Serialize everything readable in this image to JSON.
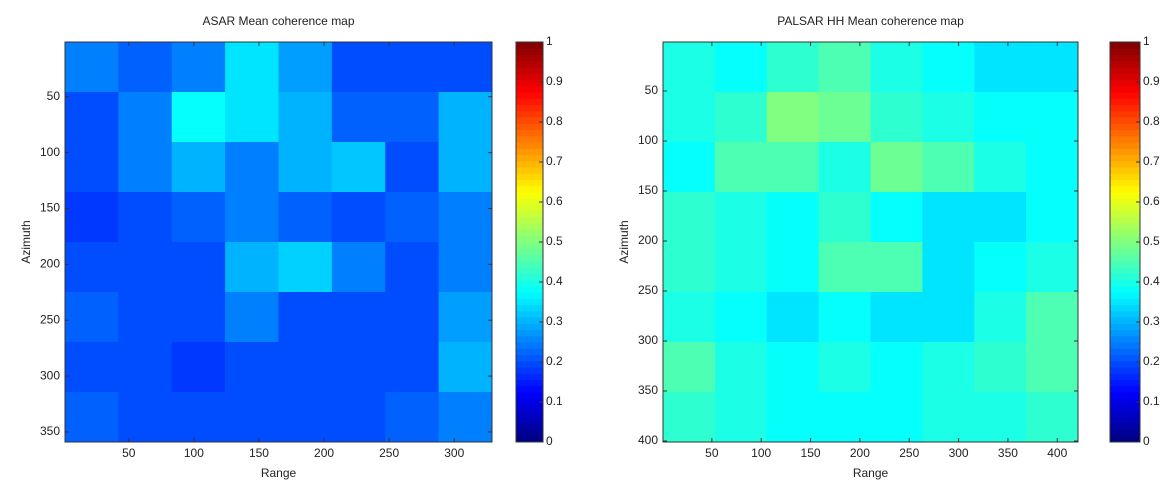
{
  "chart_data": [
    {
      "type": "heatmap",
      "title": "ASAR Mean coherence map",
      "xlabel": "Range",
      "ylabel": "Azimuth",
      "xlim": [
        1,
        329
      ],
      "ylim": [
        1,
        359
      ],
      "xticks": [
        50,
        100,
        150,
        200,
        250,
        300
      ],
      "yticks": [
        50,
        100,
        150,
        200,
        250,
        300,
        350
      ],
      "clim": [
        0,
        1
      ],
      "cticks": [
        0,
        0.1,
        0.2,
        0.3,
        0.4,
        0.5,
        0.6,
        0.7,
        0.8,
        0.9,
        1
      ],
      "z": [
        [
          0.25,
          0.22,
          0.25,
          0.35,
          0.28,
          0.2,
          0.2,
          0.2
        ],
        [
          0.2,
          0.25,
          0.38,
          0.35,
          0.3,
          0.22,
          0.22,
          0.3
        ],
        [
          0.2,
          0.25,
          0.3,
          0.25,
          0.3,
          0.32,
          0.2,
          0.3
        ],
        [
          0.18,
          0.2,
          0.22,
          0.25,
          0.22,
          0.2,
          0.22,
          0.25
        ],
        [
          0.2,
          0.2,
          0.2,
          0.3,
          0.33,
          0.25,
          0.2,
          0.25
        ],
        [
          0.22,
          0.2,
          0.2,
          0.25,
          0.2,
          0.2,
          0.2,
          0.28
        ],
        [
          0.2,
          0.2,
          0.18,
          0.2,
          0.2,
          0.2,
          0.2,
          0.3
        ],
        [
          0.22,
          0.2,
          0.2,
          0.2,
          0.2,
          0.2,
          0.22,
          0.25
        ]
      ]
    },
    {
      "type": "heatmap",
      "title": "PALSAR HH Mean coherence map",
      "xlabel": "Range",
      "ylabel": "Azimuth",
      "xlim": [
        0.5,
        421
      ],
      "ylim": [
        1,
        401
      ],
      "xticks": [
        50,
        100,
        150,
        200,
        250,
        300,
        350,
        400
      ],
      "yticks": [
        50,
        100,
        150,
        200,
        250,
        300,
        350,
        400
      ],
      "clim": [
        0,
        1
      ],
      "cticks": [
        0,
        0.1,
        0.2,
        0.3,
        0.4,
        0.5,
        0.6,
        0.7,
        0.8,
        0.9,
        1
      ],
      "z": [
        [
          0.4,
          0.38,
          0.42,
          0.45,
          0.4,
          0.38,
          0.35,
          0.35
        ],
        [
          0.4,
          0.42,
          0.5,
          0.48,
          0.42,
          0.4,
          0.38,
          0.38
        ],
        [
          0.38,
          0.45,
          0.45,
          0.4,
          0.48,
          0.45,
          0.4,
          0.38
        ],
        [
          0.42,
          0.4,
          0.38,
          0.42,
          0.38,
          0.35,
          0.35,
          0.38
        ],
        [
          0.42,
          0.4,
          0.38,
          0.45,
          0.45,
          0.35,
          0.38,
          0.4
        ],
        [
          0.4,
          0.38,
          0.35,
          0.38,
          0.35,
          0.35,
          0.4,
          0.45
        ],
        [
          0.45,
          0.4,
          0.38,
          0.4,
          0.38,
          0.4,
          0.42,
          0.45
        ],
        [
          0.42,
          0.4,
          0.38,
          0.38,
          0.38,
          0.4,
          0.4,
          0.42
        ]
      ]
    }
  ]
}
